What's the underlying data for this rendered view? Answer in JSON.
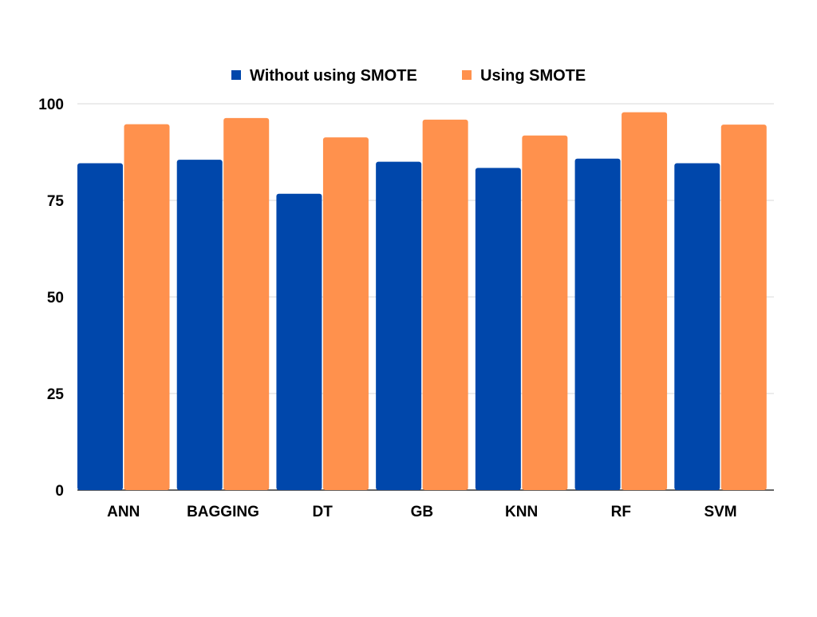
{
  "chart_data": {
    "type": "bar",
    "title": "",
    "xlabel": "",
    "ylabel": "",
    "categories": [
      "ANN",
      "BAGGING",
      "DT",
      "GB",
      "KNN",
      "RF",
      "SVM"
    ],
    "series": [
      {
        "name": "Without using SMOTE",
        "color": "#0047ab",
        "values": [
          84.6,
          85.5,
          76.7,
          85.0,
          83.4,
          85.8,
          84.6
        ]
      },
      {
        "name": "Using SMOTE",
        "color": "#ff914d",
        "values": [
          94.7,
          96.3,
          91.3,
          95.9,
          91.8,
          97.8,
          94.6
        ]
      }
    ],
    "ylim": [
      0,
      100
    ],
    "yticks": [
      "0",
      "25",
      "50",
      "75",
      "100"
    ],
    "grid": true,
    "legend_position": "top-center"
  }
}
